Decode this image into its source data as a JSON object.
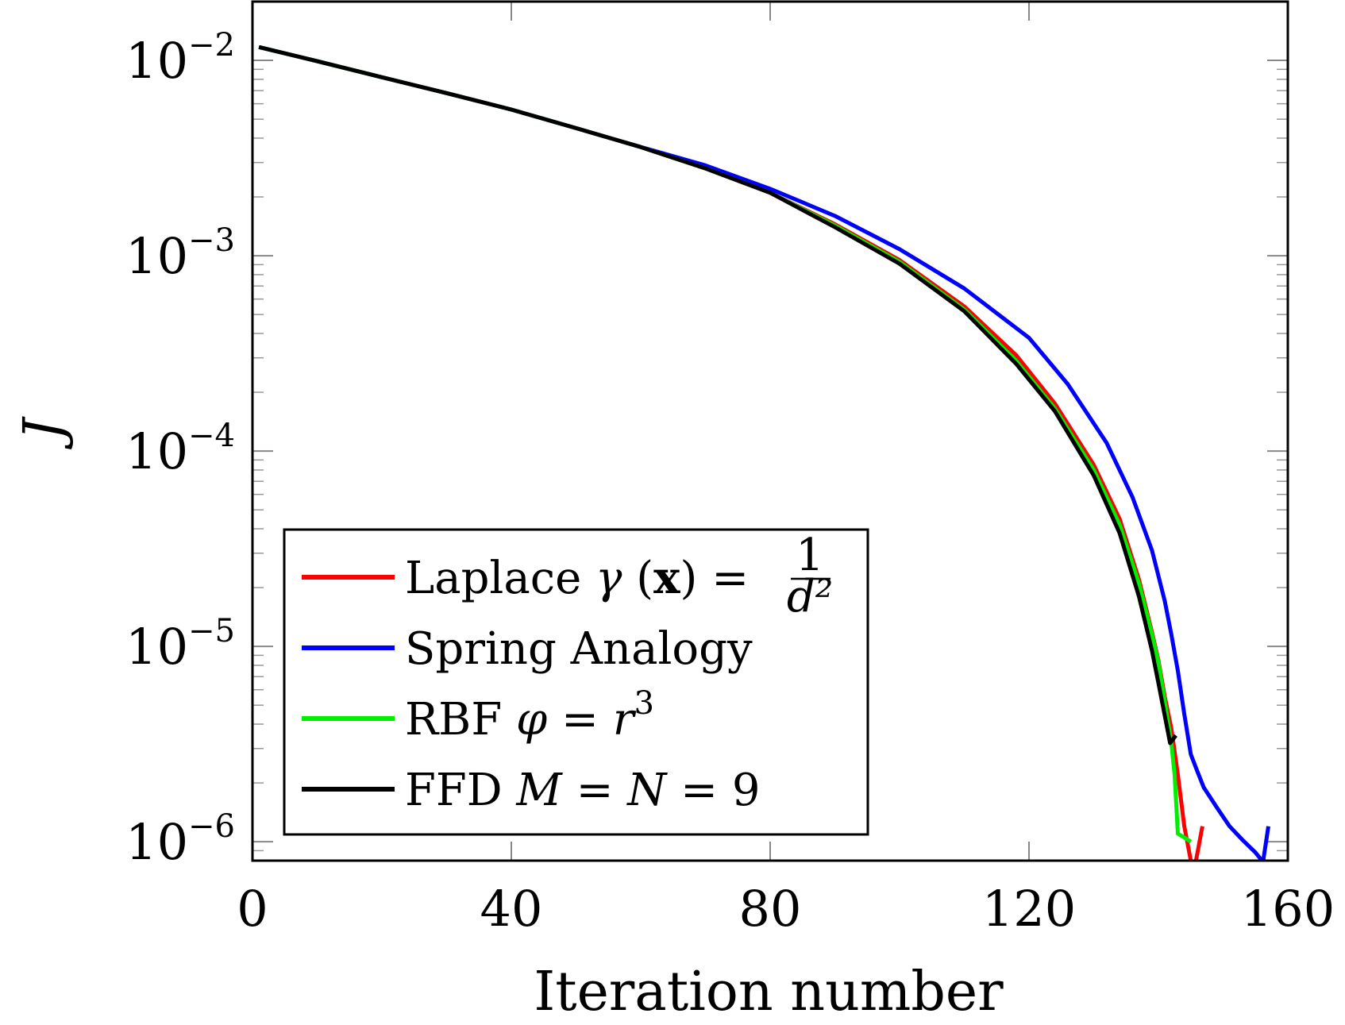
{
  "chart_data": {
    "type": "line",
    "xlabel": "Iteration number",
    "ylabel": "J",
    "xlim": [
      0,
      160
    ],
    "ylim": [
      8e-07,
      0.02
    ],
    "yscale": "log",
    "x_ticks": [
      0,
      40,
      80,
      120,
      160
    ],
    "x_tick_labels": [
      "0",
      "40",
      "80",
      "120",
      "160"
    ],
    "y_ticks": [
      {
        "value": 0.01,
        "base": "10",
        "exp": "−2"
      },
      {
        "value": 0.001,
        "base": "10",
        "exp": "−3"
      },
      {
        "value": 0.0001,
        "base": "10",
        "exp": "−4"
      },
      {
        "value": 1e-05,
        "base": "10",
        "exp": "−5"
      },
      {
        "value": 1e-06,
        "base": "10",
        "exp": "−6"
      }
    ],
    "grid": false,
    "legend_position": "bottom-left",
    "series": [
      {
        "name": "Laplace γ (x) = 1/d²",
        "color": "#ff0000",
        "segments": [
          [
            [
              1,
              0.0117
            ],
            [
              10,
              0.0099
            ],
            [
              20,
              0.0082
            ],
            [
              30,
              0.0068
            ],
            [
              40,
              0.0056
            ],
            [
              50,
              0.0045
            ],
            [
              60,
              0.0036
            ],
            [
              70,
              0.0028
            ],
            [
              80,
              0.0021
            ],
            [
              90,
              0.00145
            ],
            [
              100,
              0.00095
            ],
            [
              110,
              0.00055
            ],
            [
              118,
              0.00031
            ],
            [
              124,
              0.000175
            ],
            [
              130,
              8.5e-05
            ],
            [
              134,
              4.5e-05
            ],
            [
              137,
              2.2e-05
            ],
            [
              139,
              1.18e-05
            ],
            [
              140,
              8.5e-06
            ],
            [
              141,
              5.5e-06
            ],
            [
              142,
              3.8e-06
            ],
            [
              143,
              2.2e-06
            ],
            [
              144,
              1.2e-06
            ],
            [
              145,
              8e-07
            ]
          ],
          [
            [
              145.8,
              8e-07
            ],
            [
              146.8,
              1.2e-06
            ]
          ]
        ]
      },
      {
        "name": "Spring Analogy",
        "color": "#0000ff",
        "segments": [
          [
            [
              1,
              0.0117
            ],
            [
              10,
              0.0099
            ],
            [
              20,
              0.0082
            ],
            [
              30,
              0.0068
            ],
            [
              40,
              0.0056
            ],
            [
              50,
              0.0045
            ],
            [
              60,
              0.0036
            ],
            [
              70,
              0.0029
            ],
            [
              80,
              0.0022
            ],
            [
              90,
              0.0016
            ],
            [
              100,
              0.00108
            ],
            [
              110,
              0.00068
            ],
            [
              120,
              0.00038
            ],
            [
              126,
              0.00022
            ],
            [
              132,
              0.00011
            ],
            [
              136,
              5.8e-05
            ],
            [
              139,
              3.1e-05
            ],
            [
              141,
              1.7e-05
            ],
            [
              142,
              1.15e-05
            ],
            [
              143,
              7.5e-06
            ],
            [
              144,
              4.5e-06
            ],
            [
              145,
              2.8e-06
            ],
            [
              146,
              2.3e-06
            ],
            [
              147,
              1.9e-06
            ],
            [
              149,
              1.5e-06
            ],
            [
              151,
              1.2e-06
            ],
            [
              153,
              1.02e-06
            ],
            [
              155,
              8.8e-07
            ],
            [
              156,
              8e-07
            ]
          ],
          [
            [
              156.2,
              8e-07
            ],
            [
              157,
              1.2e-06
            ]
          ]
        ]
      },
      {
        "name": "RBF φ = r³",
        "color": "#00ee00",
        "segments": [
          [
            [
              1,
              0.0117
            ],
            [
              10,
              0.0099
            ],
            [
              20,
              0.0082
            ],
            [
              30,
              0.0068
            ],
            [
              40,
              0.0056
            ],
            [
              50,
              0.0045
            ],
            [
              60,
              0.0036
            ],
            [
              70,
              0.0028
            ],
            [
              80,
              0.0021
            ],
            [
              90,
              0.00143
            ],
            [
              100,
              0.00093
            ],
            [
              110,
              0.00053
            ],
            [
              118,
              0.00029
            ],
            [
              124,
              0.000165
            ],
            [
              130,
              8e-05
            ],
            [
              134,
              4.2e-05
            ],
            [
              137,
              2.1e-05
            ],
            [
              139,
              1.15e-05
            ],
            [
              140,
              8.3e-06
            ],
            [
              141,
              5.2e-06
            ],
            [
              142,
              3.2e-06
            ],
            [
              142.5,
              2.2e-06
            ],
            [
              143,
              1.1e-06
            ],
            [
              144,
              1.05e-06
            ],
            [
              145,
              1e-06
            ]
          ]
        ]
      },
      {
        "name": "FFD M = N = 9",
        "color": "#000000",
        "segments": [
          [
            [
              1,
              0.0117
            ],
            [
              10,
              0.0099
            ],
            [
              20,
              0.0082
            ],
            [
              30,
              0.0068
            ],
            [
              40,
              0.0056
            ],
            [
              50,
              0.0045
            ],
            [
              60,
              0.0036
            ],
            [
              70,
              0.0028
            ],
            [
              80,
              0.0021
            ],
            [
              90,
              0.0014
            ],
            [
              100,
              0.00091
            ],
            [
              110,
              0.00052
            ],
            [
              118,
              0.00028
            ],
            [
              124,
              0.00016
            ],
            [
              130,
              7.5e-05
            ],
            [
              134,
              3.8e-05
            ],
            [
              137,
              1.8e-05
            ],
            [
              139,
              9.5e-06
            ],
            [
              140,
              6.5e-06
            ],
            [
              141,
              4.4e-06
            ],
            [
              141.8,
              3.2e-06
            ],
            [
              142.7,
              3.5e-06
            ]
          ]
        ]
      }
    ]
  }
}
